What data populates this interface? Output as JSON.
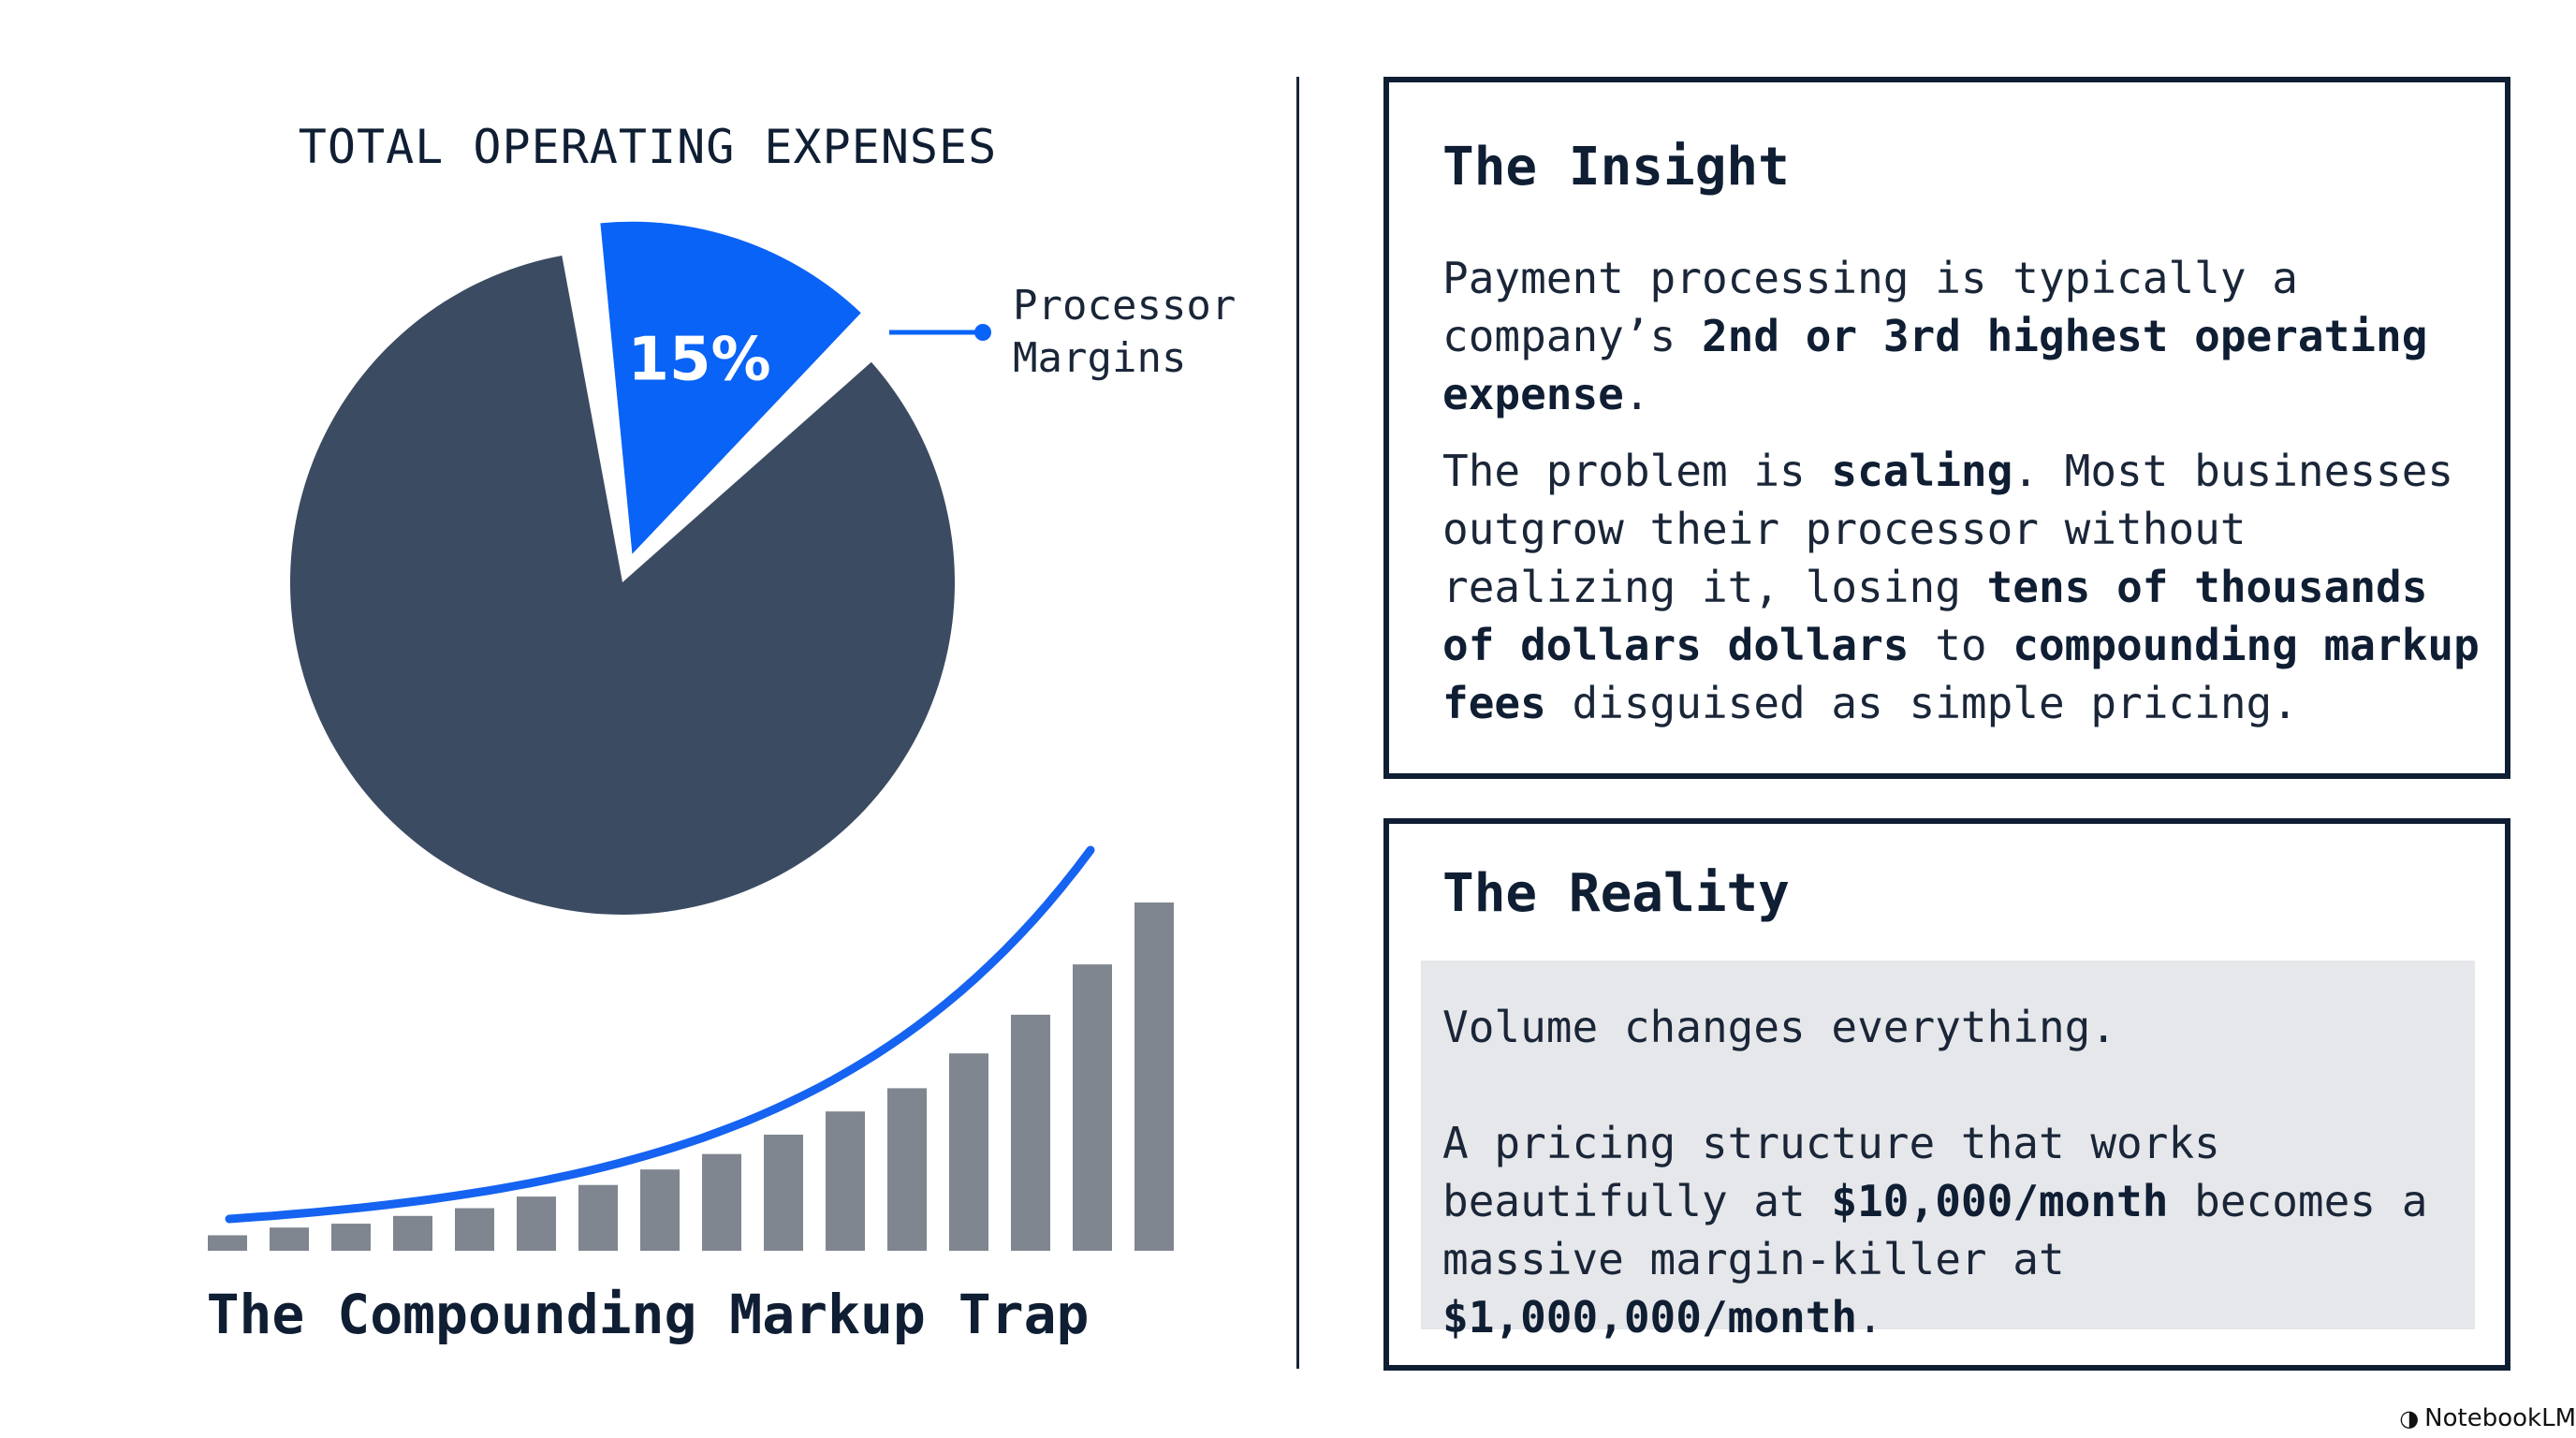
{
  "chart_data": [
    {
      "type": "pie",
      "title": "TOTAL OPERATING EXPENSES",
      "slices": [
        {
          "label": "Processor Margins",
          "value": 15,
          "value_label": "15%",
          "color": "#0a63f7",
          "exploded": true
        },
        {
          "label": "",
          "value": 85,
          "value_label": "",
          "color": "#3b4b62",
          "exploded": false
        }
      ]
    },
    {
      "type": "bar",
      "title": "The Compounding Markup Trap",
      "values": [
        4,
        6,
        7,
        9,
        11,
        14,
        17,
        21,
        25,
        30,
        36,
        42,
        51,
        61,
        74,
        90
      ],
      "bar_color": "#7f868f",
      "trend_color": "#1563f0",
      "grid": false,
      "axes_visible": false
    }
  ],
  "insight": {
    "title": "The Insight",
    "p1": [
      {
        "t": "Payment processing is typically a company’s ",
        "b": false
      },
      {
        "t": "2nd or 3rd highest operating expense",
        "b": true
      },
      {
        "t": ".",
        "b": false
      }
    ],
    "p2": [
      {
        "t": "The problem is ",
        "b": false
      },
      {
        "t": "scaling",
        "b": true
      },
      {
        "t": ". Most businesses outgrow their processor without realizing it, losing ",
        "b": false
      },
      {
        "t": "tens of thousands of dollars dollars",
        "b": true
      },
      {
        "t": " to ",
        "b": false
      },
      {
        "t": "compounding markup fees",
        "b": true
      },
      {
        "t": " disguised as simple pricing.",
        "b": false
      }
    ]
  },
  "reality": {
    "title": "The Reality",
    "p1": "Volume changes everything.",
    "p2": [
      {
        "t": "A pricing structure that works beautifully at ",
        "b": false
      },
      {
        "t": "$10,000/month",
        "b": true
      },
      {
        "t": " becomes a massive margin-killer at ",
        "b": false
      },
      {
        "t": "$1,000,000/month",
        "b": true
      },
      {
        "t": ".",
        "b": false
      }
    ]
  },
  "brand": {
    "name": "NotebookLM",
    "icon": "notebooklm-logo-icon"
  }
}
